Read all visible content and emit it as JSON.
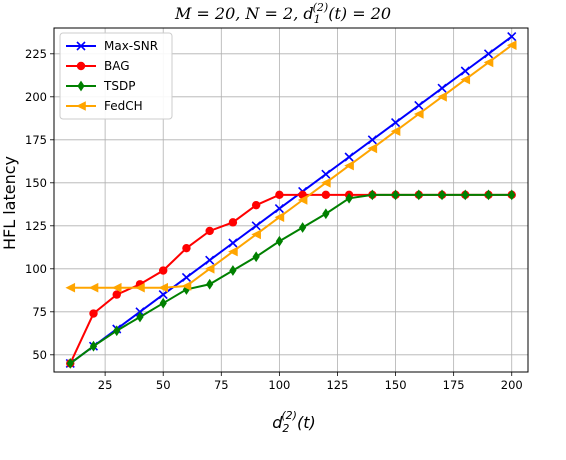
{
  "chart_data": {
    "type": "line",
    "title": {
      "line1": "M = 20, N = 2, ",
      "dpart": "d",
      "sub": "1",
      "sup": "(2)",
      "tail": "(t) = 20"
    },
    "xlabel": {
      "d": "d",
      "sub": "2",
      "sup": "(2)",
      "tail": "(t)"
    },
    "ylabel": "HFL latency",
    "xlim": [
      3,
      207
    ],
    "ylim": [
      40,
      240
    ],
    "xticks": [
      25,
      50,
      75,
      100,
      125,
      150,
      175,
      200
    ],
    "yticks": [
      50,
      75,
      100,
      125,
      150,
      175,
      200,
      225
    ],
    "grid": true,
    "legend_position": "top-left",
    "x": [
      10,
      20,
      30,
      40,
      50,
      60,
      70,
      80,
      90,
      100,
      110,
      120,
      130,
      140,
      150,
      160,
      170,
      180,
      190,
      200
    ],
    "series": [
      {
        "name": "Max-SNR",
        "color": "#0000ff",
        "marker": "x",
        "values": [
          45,
          55,
          65,
          75,
          85,
          95,
          105,
          115,
          125,
          135,
          145,
          155,
          165,
          175,
          185,
          195,
          205,
          215,
          225,
          235
        ]
      },
      {
        "name": "BAG",
        "color": "#ff0000",
        "marker": "circle",
        "values": [
          45,
          74,
          85,
          91,
          99,
          112,
          122,
          127,
          137,
          143,
          143,
          143,
          143,
          143,
          143,
          143,
          143,
          143,
          143,
          143
        ]
      },
      {
        "name": "TSDP",
        "color": "#008000",
        "marker": "diamond",
        "values": [
          45,
          55,
          64,
          72,
          80,
          88,
          91,
          99,
          107,
          116,
          124,
          132,
          141,
          143,
          143,
          143,
          143,
          143,
          143,
          143
        ]
      },
      {
        "name": "FedCH",
        "color": "#ffa500",
        "marker": "triangle-left",
        "values": [
          89,
          89,
          89,
          89,
          89,
          90,
          100,
          110,
          120,
          130,
          140,
          150,
          160,
          170,
          180,
          190,
          200,
          210,
          220,
          230
        ]
      }
    ]
  }
}
